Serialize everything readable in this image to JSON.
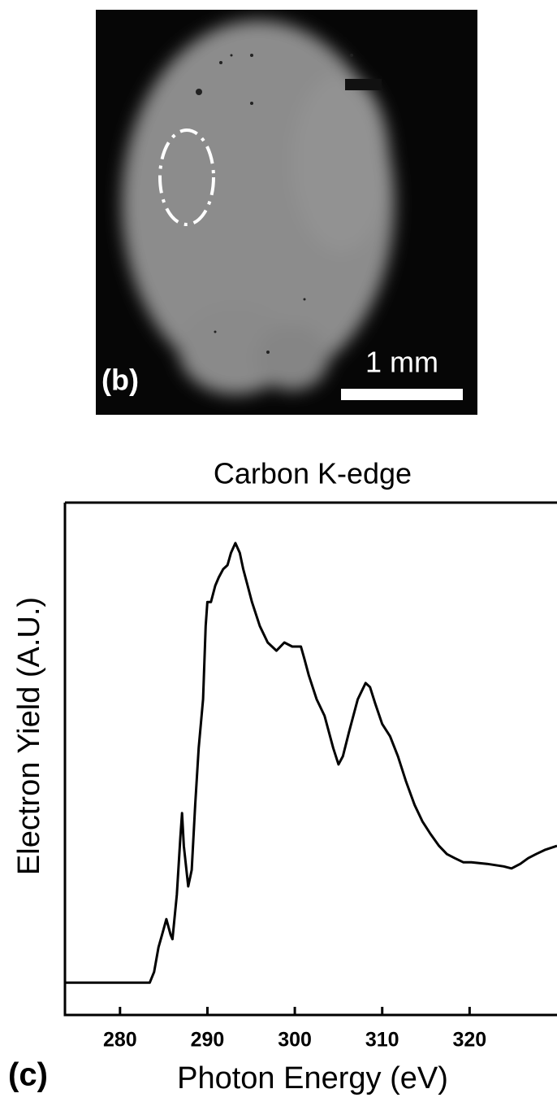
{
  "image_panel": {
    "label": "(b)",
    "scale_bar": "1 mm"
  },
  "chart_data": {
    "type": "line",
    "title": "Carbon K-edge",
    "panel_label": "(c)",
    "xlabel": "Photon Energy (eV)",
    "ylabel": "Electron Yield (A.U.)",
    "color": "#000000",
    "x": [
      273.7,
      283.4,
      283.9,
      284.4,
      284.8,
      285.3,
      285.8,
      286.0,
      286.5,
      286.9,
      287.1,
      287.3,
      287.8,
      288.2,
      288.6,
      289.0,
      289.5,
      289.8,
      290.0,
      290.4,
      290.9,
      291.3,
      291.8,
      292.3,
      292.7,
      293.2,
      293.7,
      294.1,
      294.6,
      295.1,
      296.0,
      296.9,
      297.9,
      298.8,
      299.7,
      300.7,
      301.1,
      301.6,
      302.5,
      303.4,
      304.4,
      305.0,
      305.5,
      306.2,
      307.2,
      308.1,
      308.6,
      309.2,
      310.0,
      310.9,
      311.8,
      312.7,
      313.7,
      314.6,
      315.5,
      316.5,
      317.4,
      318.3,
      319.3,
      320.2,
      322.0,
      323.9,
      324.8,
      325.8,
      326.7,
      327.6,
      328.6,
      330.0
    ],
    "values": [
      0.063,
      0.063,
      0.084,
      0.132,
      0.156,
      0.187,
      0.156,
      0.148,
      0.235,
      0.346,
      0.394,
      0.33,
      0.251,
      0.283,
      0.41,
      0.521,
      0.616,
      0.759,
      0.806,
      0.806,
      0.838,
      0.854,
      0.87,
      0.878,
      0.902,
      0.921,
      0.902,
      0.87,
      0.838,
      0.806,
      0.759,
      0.727,
      0.711,
      0.727,
      0.719,
      0.719,
      0.695,
      0.663,
      0.616,
      0.584,
      0.521,
      0.489,
      0.505,
      0.552,
      0.616,
      0.648,
      0.64,
      0.608,
      0.568,
      0.544,
      0.505,
      0.457,
      0.41,
      0.378,
      0.354,
      0.33,
      0.314,
      0.306,
      0.298,
      0.298,
      0.295,
      0.29,
      0.286,
      0.295,
      0.306,
      0.314,
      0.322,
      0.33
    ],
    "xlim": [
      273.7,
      330.0
    ],
    "ylim": [
      0,
      1
    ],
    "xticks": [
      280,
      290,
      300,
      310,
      320
    ]
  }
}
